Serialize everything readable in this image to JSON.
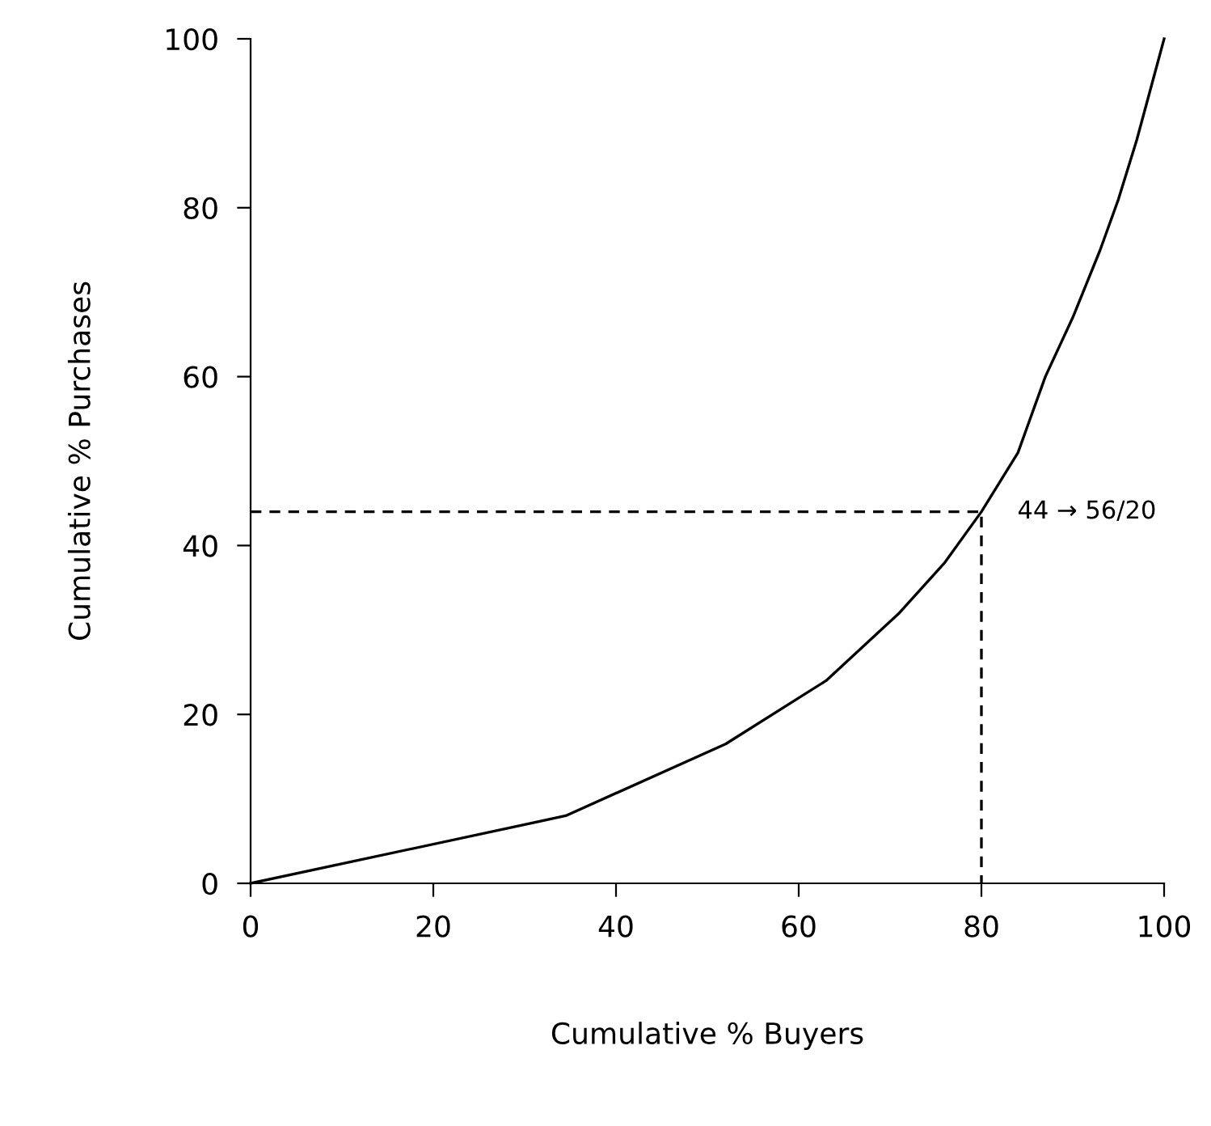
{
  "chart_data": {
    "type": "line",
    "xlabel": "Cumulative % Buyers",
    "ylabel": "Cumulative % Purchases",
    "series": [
      {
        "color": "#000000",
        "line_style": "solid",
        "x": [
          0,
          34.5,
          52,
          63,
          71,
          76,
          80,
          84,
          87,
          90,
          93,
          95,
          97,
          99,
          100
        ],
        "values": [
          0,
          8,
          16.5,
          24,
          32,
          38,
          44,
          51,
          60,
          67,
          75,
          81,
          88,
          96,
          100
        ]
      },
      {
        "color": "#000000",
        "line_style": "dashed",
        "x": [
          0,
          80,
          80
        ],
        "values": [
          44,
          44,
          0
        ]
      }
    ],
    "annotations": [
      {
        "text": "44 → 56/20",
        "x": 80,
        "y": 44
      }
    ],
    "xlim": [
      0,
      100
    ],
    "ylim": [
      0,
      100
    ],
    "xticks": [
      0,
      20,
      40,
      60,
      80,
      100
    ],
    "yticks": [
      0,
      20,
      40,
      60,
      80,
      100
    ],
    "grid": false,
    "marker": "none"
  }
}
